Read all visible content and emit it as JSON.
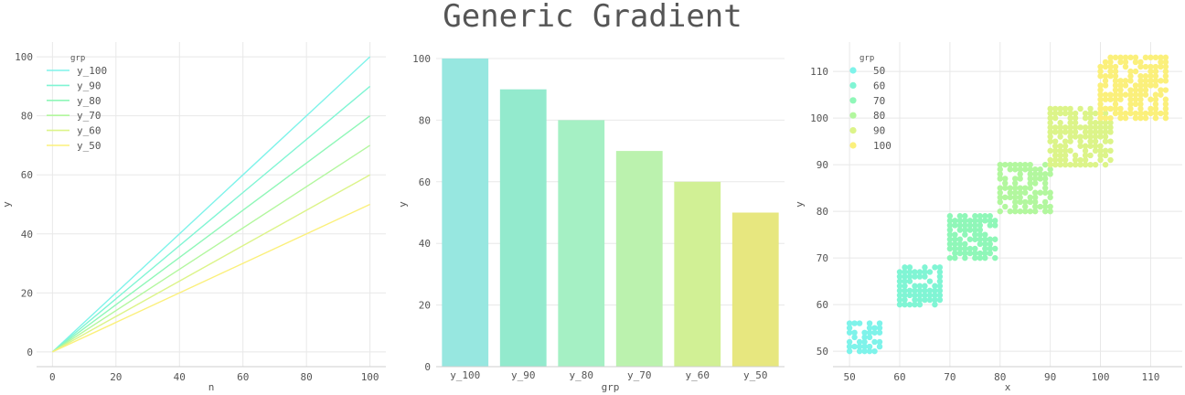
{
  "title": "Generic Gradient",
  "colors": {
    "y_100": "#7ef3ea",
    "y_90": "#80f5d4",
    "y_80": "#8ff7b8",
    "y_70": "#b2f79e",
    "y_60": "#dcf489",
    "y_50": "#fbf07b",
    "grid": "#e8e8e8",
    "axis": "#cfcfcf"
  },
  "chart_data": [
    {
      "type": "line",
      "xlabel": "n",
      "ylabel": "y",
      "xlim": [
        -5,
        105
      ],
      "ylim": [
        -5,
        105
      ],
      "xticks": [
        0,
        20,
        40,
        60,
        80,
        100
      ],
      "yticks": [
        0,
        20,
        40,
        60,
        80,
        100
      ],
      "grid": true,
      "legend_title": "grp",
      "legend_position": "top-left",
      "series": [
        {
          "name": "y_100",
          "x": [
            0,
            100
          ],
          "y": [
            0,
            100
          ]
        },
        {
          "name": "y_90",
          "x": [
            0,
            100
          ],
          "y": [
            0,
            90
          ]
        },
        {
          "name": "y_80",
          "x": [
            0,
            100
          ],
          "y": [
            0,
            80
          ]
        },
        {
          "name": "y_70",
          "x": [
            0,
            100
          ],
          "y": [
            0,
            70
          ]
        },
        {
          "name": "y_60",
          "x": [
            0,
            100
          ],
          "y": [
            0,
            60
          ]
        },
        {
          "name": "y_50",
          "x": [
            0,
            100
          ],
          "y": [
            0,
            50
          ]
        }
      ]
    },
    {
      "type": "bar",
      "xlabel": "grp",
      "ylabel": "y",
      "ylim": [
        0,
        100
      ],
      "yticks": [
        0,
        20,
        40,
        60,
        80,
        100
      ],
      "grid": true,
      "categories": [
        "y_100",
        "y_90",
        "y_80",
        "y_70",
        "y_60",
        "y_50"
      ],
      "values": [
        100,
        90,
        80,
        70,
        60,
        50
      ],
      "colors": [
        "#97e7e0",
        "#93eacd",
        "#a5f0c4",
        "#bbf2ae",
        "#d1f095",
        "#e7e77f"
      ]
    },
    {
      "type": "scatter",
      "xlabel": "x",
      "ylabel": "y",
      "xlim": [
        46.7,
        116.3
      ],
      "ylim": [
        46.7,
        116.3
      ],
      "xticks": [
        50,
        60,
        70,
        80,
        90,
        100,
        110
      ],
      "yticks": [
        50,
        60,
        70,
        80,
        90,
        100,
        110
      ],
      "grid": true,
      "legend_title": "grp",
      "legend_position": "top-left",
      "series": [
        {
          "name": "50",
          "color": "#7ef3ea",
          "xrange": [
            50,
            56
          ],
          "yrange": [
            50,
            56
          ]
        },
        {
          "name": "60",
          "color": "#80f5d4",
          "xrange": [
            60,
            68
          ],
          "yrange": [
            60,
            68
          ]
        },
        {
          "name": "70",
          "color": "#8ff7b8",
          "xrange": [
            70,
            79
          ],
          "yrange": [
            70,
            79
          ]
        },
        {
          "name": "80",
          "color": "#b2f79e",
          "xrange": [
            80,
            90
          ],
          "yrange": [
            80,
            90
          ]
        },
        {
          "name": "90",
          "color": "#dcf489",
          "xrange": [
            90,
            102
          ],
          "yrange": [
            90,
            102
          ]
        },
        {
          "name": "100",
          "color": "#fbf07b",
          "xrange": [
            100,
            113
          ],
          "yrange": [
            100,
            113
          ]
        }
      ]
    }
  ]
}
